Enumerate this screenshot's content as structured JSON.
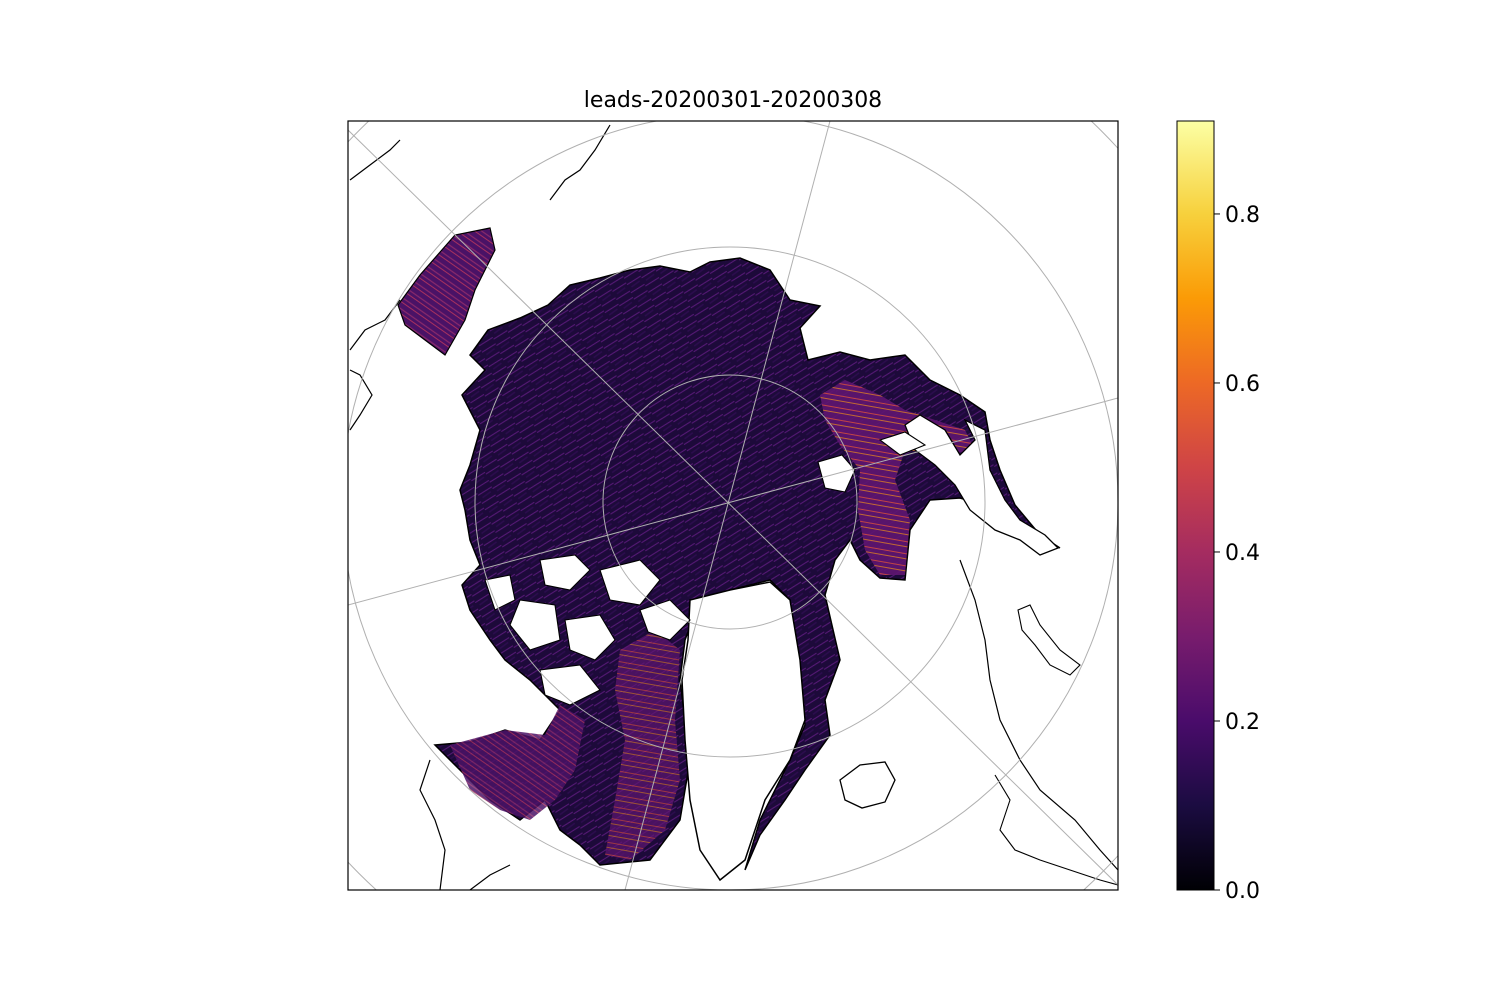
{
  "title": "leads-20200301-20200308",
  "map": {
    "projection": "north-polar-stereographic",
    "graticule": "on",
    "coastlines": "on",
    "colormap": "inferno",
    "land_color": "#ffffff",
    "coastline_color": "#000000",
    "graticule_color": "#b0b0b0"
  },
  "colorbar": {
    "min": 0.0,
    "max": 0.91,
    "ticks": [
      {
        "value": 0.0,
        "label": "0.0"
      },
      {
        "value": 0.2,
        "label": "0.2"
      },
      {
        "value": 0.4,
        "label": "0.4"
      },
      {
        "value": 0.6,
        "label": "0.6"
      },
      {
        "value": 0.8,
        "label": "0.8"
      }
    ],
    "colors": [
      "#000004",
      "#1b0c41",
      "#4a0c6b",
      "#781c6d",
      "#a52c60",
      "#cf4446",
      "#ed6925",
      "#fb9b06",
      "#f7d13d",
      "#fcffa4"
    ]
  }
}
